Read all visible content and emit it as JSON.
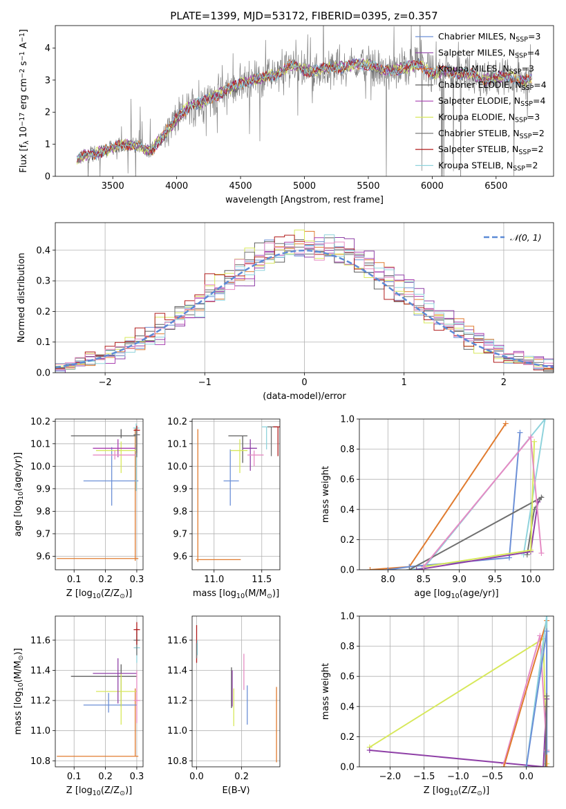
{
  "title": "PLATE=1399, MJD=53172, FIBERID=0395, z=0.357",
  "colors": {
    "Chabrier MILES": "#6b8fd6",
    "Salpeter MILES": "#8e3fa6",
    "Kroupa MILES": "#e07b2f",
    "Chabrier ELODIE": "#5f5f5f",
    "Salpeter ELODIE": "#a83fb0",
    "Kroupa ELODIE": "#d7e85a",
    "Chabrier STELIB": "#6f6f6f",
    "Salpeter STELIB": "#b01a1a",
    "Kroupa STELIB": "#8fd3dc",
    "data": "#7f7f7f",
    "normal": "#5b8ad6",
    "pink": "#e58bc4"
  },
  "chart_data": [
    {
      "type": "line",
      "panel": "spectrum",
      "xlabel": "wavelength [Angstrom, rest frame]",
      "ylabel": "Flux [f_λ 10^-17 erg cm^-2 s^-1 A^-1]",
      "xlim": [
        3050,
        6950
      ],
      "ylim": [
        0,
        4.7
      ],
      "xticks": [
        "3500",
        "4000",
        "4500",
        "5000",
        "5500",
        "6000",
        "6500"
      ],
      "yticks": [
        "0",
        "1",
        "2",
        "3",
        "4"
      ],
      "legend": {
        "placement": "top-right",
        "entries": [
          {
            "label": "Chabrier MILES, N",
            "sub": "SSP",
            "suffix": "=3"
          },
          {
            "label": "Salpeter MILES, N",
            "sub": "SSP",
            "suffix": "=4"
          },
          {
            "label": "Kroupa MILES, N",
            "sub": "SSP",
            "suffix": "=3"
          },
          {
            "label": "Chabrier ELODIE, N",
            "sub": "SSP",
            "suffix": "=4"
          },
          {
            "label": "Salpeter ELODIE, N",
            "sub": "SSP",
            "suffix": "=4"
          },
          {
            "label": "Kroupa ELODIE, N",
            "sub": "SSP",
            "suffix": "=3"
          },
          {
            "label": "Chabrier STELIB, N",
            "sub": "SSP",
            "suffix": "=2"
          },
          {
            "label": "Salpeter STELIB, N",
            "sub": "SSP",
            "suffix": "=2"
          },
          {
            "label": "Kroupa STELIB, N",
            "sub": "SSP",
            "suffix": "=2"
          }
        ]
      },
      "continuum": {
        "x": [
          3220,
          3300,
          3400,
          3500,
          3600,
          3700,
          3800,
          3900,
          4000,
          4100,
          4200,
          4300,
          4400,
          4500,
          4600,
          4700,
          4800,
          4900,
          5000,
          5100,
          5200,
          5300,
          5400,
          5500,
          5600,
          5700,
          5800,
          5900,
          6000,
          6100,
          6200,
          6300,
          6400,
          6500,
          6600,
          6700,
          6780
        ],
        "y": [
          0.55,
          0.65,
          0.75,
          0.9,
          1.0,
          0.95,
          0.8,
          1.3,
          1.8,
          2.2,
          2.3,
          2.5,
          2.7,
          2.9,
          3.0,
          3.1,
          3.2,
          3.5,
          3.3,
          3.3,
          3.4,
          3.4,
          3.5,
          3.5,
          3.3,
          3.3,
          3.4,
          3.5,
          3.2,
          3.3,
          3.2,
          3.2,
          3.0,
          3.1,
          3.1,
          3.0,
          3.0
        ]
      }
    },
    {
      "type": "line",
      "panel": "residual-histogram",
      "xlabel": "(data-model)/error",
      "ylabel": "Normed distribution",
      "xlim": [
        -2.5,
        2.5
      ],
      "ylim": [
        0,
        0.49
      ],
      "xticks": [
        "-2",
        "-1",
        "0",
        "1",
        "2"
      ],
      "yticks": [
        "0.0",
        "0.1",
        "0.2",
        "0.3",
        "0.4"
      ],
      "legend": {
        "placement": "top-right",
        "entries": [
          {
            "label": "N(0,1)"
          }
        ]
      }
    },
    {
      "type": "scatter",
      "panel": "age-vs-Z",
      "xlabel": "Z [log10(Z/Z⊙)]",
      "ylabel": "age [log10(age/yr)]",
      "xlim": [
        0.04,
        0.32
      ],
      "ylim": [
        9.54,
        10.21
      ],
      "xticks": [
        "0.1",
        "0.2",
        "0.3"
      ],
      "yticks": [
        "9.6",
        "9.7",
        "9.8",
        "9.9",
        "10.0",
        "10.1",
        "10.2"
      ]
    },
    {
      "type": "scatter",
      "panel": "age-vs-mass",
      "xlabel": "mass [log10(M/M⊙)]",
      "ylabel": "",
      "xlim": [
        10.77,
        11.69
      ],
      "ylim": [
        9.54,
        10.21
      ],
      "xticks": [
        "11.0",
        "11.5"
      ],
      "yticks": [
        "9.6",
        "9.7",
        "9.8",
        "9.9",
        "10.0",
        "10.1",
        "10.2"
      ]
    },
    {
      "type": "line",
      "panel": "mass-weight-vs-age",
      "xlabel": "age [log10(age/yr)]",
      "ylabel": "mass weight",
      "xlim": [
        7.6,
        10.32
      ],
      "ylim": [
        0,
        1
      ],
      "xticks": [
        "8.0",
        "8.5",
        "9.0",
        "9.5",
        "10.0"
      ],
      "yticks": [
        "0.0",
        "0.2",
        "0.4",
        "0.6",
        "0.8",
        "1.0"
      ]
    },
    {
      "type": "scatter",
      "panel": "mass-vs-Z",
      "xlabel": "Z [log10(Z/Z⊙)]",
      "ylabel": "mass [log10(M/M⊙)]",
      "xlim": [
        0.04,
        0.32
      ],
      "ylim": [
        10.76,
        11.76
      ],
      "xticks": [
        "0.1",
        "0.2",
        "0.3"
      ],
      "yticks": [
        "10.8",
        "11.0",
        "11.2",
        "11.4",
        "11.6"
      ]
    },
    {
      "type": "scatter",
      "panel": "mass-vs-EBV",
      "xlabel": "E(B-V)",
      "ylabel": "",
      "xlim": [
        -0.02,
        0.37
      ],
      "ylim": [
        10.76,
        11.76
      ],
      "xticks": [
        "0.0",
        "0.2"
      ],
      "yticks": [
        "10.8",
        "11.0",
        "11.2",
        "11.4",
        "11.6"
      ]
    },
    {
      "type": "line",
      "panel": "mass-weight-vs-Z",
      "xlabel": "Z [log10(Z/Z⊙)]",
      "ylabel": "mass weight",
      "xlim": [
        -2.45,
        0.4
      ],
      "ylim": [
        0,
        1
      ],
      "xticks": [
        "-2.0",
        "-1.5",
        "-1.0",
        "-0.5",
        "0.0"
      ],
      "yticks": [
        "0.0",
        "0.2",
        "0.4",
        "0.6",
        "0.8",
        "1.0"
      ]
    }
  ]
}
